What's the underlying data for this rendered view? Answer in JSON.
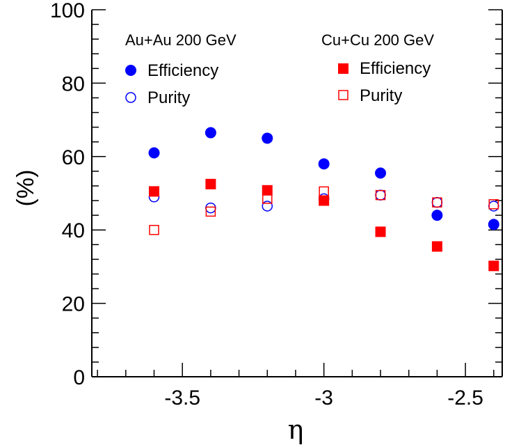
{
  "chart_data": {
    "type": "scatter",
    "xlabel": "η",
    "ylabel": "(%)",
    "xlim": [
      -3.82,
      -2.37
    ],
    "ylim": [
      0,
      100
    ],
    "x_ticks": [
      -3.5,
      -3,
      -2.5
    ],
    "x_tick_labels": [
      "-3.5",
      "-3",
      "-2.5"
    ],
    "y_ticks": [
      0,
      20,
      40,
      60,
      80,
      100
    ],
    "y_tick_labels": [
      "0",
      "20",
      "40",
      "60",
      "80",
      "100"
    ],
    "grid": false,
    "legend_groups": [
      {
        "header": "Au+Au 200 GeV",
        "entries": [
          "Efficiency",
          "Purity"
        ]
      },
      {
        "header": "Cu+Cu 200 GeV",
        "entries": [
          "Efficiency",
          "Purity"
        ]
      }
    ],
    "series": [
      {
        "name": "Au+Au 200 GeV Efficiency",
        "group": "Au+Au 200 GeV",
        "label": "Efficiency",
        "marker": "filled-circle",
        "color": "#0000ff",
        "x": [
          -3.6,
          -3.4,
          -3.2,
          -3.0,
          -2.8,
          -2.6,
          -2.4
        ],
        "y": [
          61,
          66.5,
          65,
          58,
          55.5,
          44,
          41.5
        ]
      },
      {
        "name": "Au+Au 200 GeV Purity",
        "group": "Au+Au 200 GeV",
        "label": "Purity",
        "marker": "open-circle",
        "color": "#0000ff",
        "x": [
          -3.6,
          -3.4,
          -3.2,
          -3.0,
          -2.8,
          -2.6,
          -2.4
        ],
        "y": [
          49,
          46,
          46.5,
          48.5,
          49.5,
          47.5,
          46.5
        ]
      },
      {
        "name": "Cu+Cu 200 GeV Efficiency",
        "group": "Cu+Cu 200 GeV",
        "label": "Efficiency",
        "marker": "filled-square",
        "color": "#ff0000",
        "x": [
          -3.6,
          -3.4,
          -3.2,
          -3.0,
          -2.8,
          -2.6,
          -2.4
        ],
        "y": [
          50.5,
          52.5,
          50.8,
          48,
          39.5,
          35.5,
          30.2
        ]
      },
      {
        "name": "Cu+Cu 200 GeV Purity",
        "group": "Cu+Cu 200 GeV",
        "label": "Purity",
        "marker": "open-square",
        "color": "#ff0000",
        "x": [
          -3.6,
          -3.4,
          -3.2,
          -3.0,
          -2.8,
          -2.6,
          -2.4
        ],
        "y": [
          40,
          45,
          48.5,
          50.5,
          49.5,
          47.5,
          47
        ]
      }
    ]
  }
}
